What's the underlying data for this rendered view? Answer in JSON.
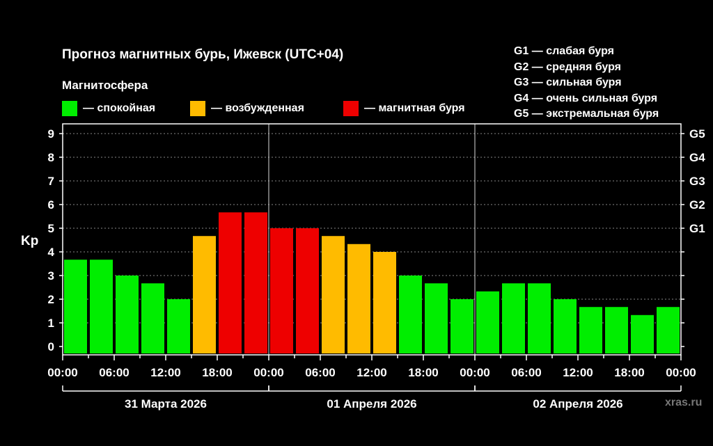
{
  "chart_data": {
    "type": "bar",
    "title": "Прогноз магнитных бурь, Ижевск (UTC+04)",
    "subtitle": "Магнитосфера",
    "ylabel": "Kp",
    "ylim": [
      0,
      9
    ],
    "grid": true,
    "legend": [
      {
        "label": "— спокойная",
        "color": "#00ee00"
      },
      {
        "label": "— возбужденная",
        "color": "#ffbb00"
      },
      {
        "label": "— магнитная буря",
        "color": "#ee0000"
      }
    ],
    "g_legend": [
      "G1 — слабая буря",
      "G2 — средняя буря",
      "G3 — сильная буря",
      "G4 — очень сильная буря",
      "G5 — экстремальная буря"
    ],
    "y_ticks": [
      "0",
      "1",
      "2",
      "3",
      "4",
      "5",
      "6",
      "7",
      "8",
      "9"
    ],
    "g_ticks": [
      {
        "label": "G1",
        "value": 5
      },
      {
        "label": "G2",
        "value": 6
      },
      {
        "label": "G3",
        "value": 7
      },
      {
        "label": "G4",
        "value": 8
      },
      {
        "label": "G5",
        "value": 9
      }
    ],
    "x_tick_labels": [
      "00:00",
      "06:00",
      "12:00",
      "18:00",
      "00:00",
      "06:00",
      "12:00",
      "18:00",
      "00:00",
      "06:00",
      "12:00",
      "18:00",
      "00:00"
    ],
    "days": [
      "31 Марта 2026",
      "01 Апреля 2026",
      "02 Апреля 2026"
    ],
    "values": [
      3,
      3.67,
      3.67,
      3,
      2.67,
      2,
      4.67,
      5.67,
      5.67,
      5,
      5,
      4.67,
      4.33,
      4,
      3,
      2.67,
      2,
      2.33,
      2.67,
      2.67,
      2,
      1.67,
      1.67,
      1.33,
      1.67
    ],
    "colors": {
      "quiet": "#00ee00",
      "active": "#ffbb00",
      "storm": "#ee0000",
      "background": "#000000",
      "grid": "#888888"
    }
  },
  "watermark": "xras.ru"
}
